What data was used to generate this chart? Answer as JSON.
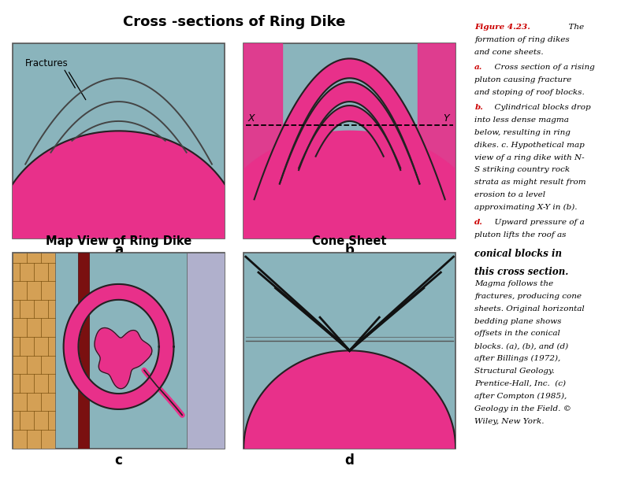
{
  "title": "Cross -sections of Ring Dike",
  "subtitle_c": "Map View of Ring Dike",
  "subtitle_d": "Cone Sheet",
  "bg_color": "#8ab4bc",
  "magma_color": "#e8308a",
  "outline_color": "#222222",
  "dike_red": "#7a1010",
  "sandstone_color": "#d4a055",
  "lavender_color": "#b0b0cc",
  "caption_red": "#cc0000"
}
